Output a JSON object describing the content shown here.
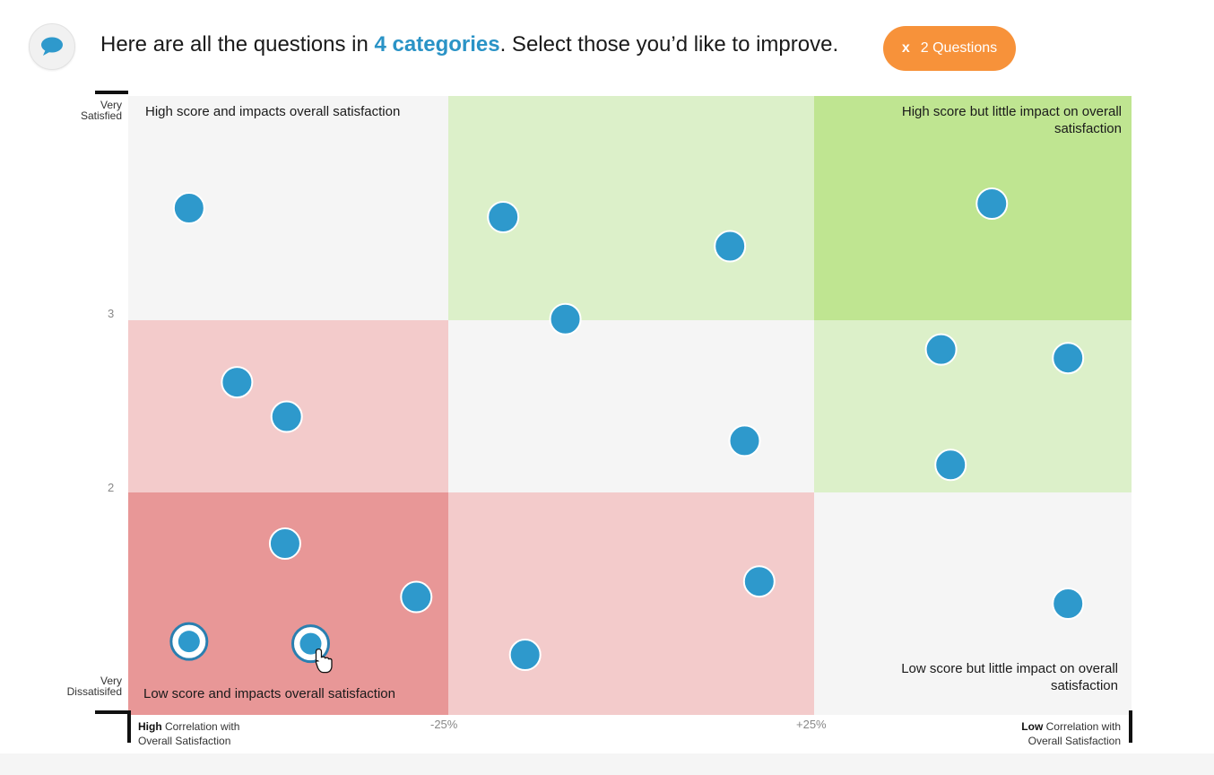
{
  "header": {
    "text_before": "Here are all the questions in ",
    "accent": "4 categories",
    "text_after": ". Select those you’d like to improve."
  },
  "selection_button": {
    "close": "x",
    "label": "2 Questions"
  },
  "chart_data": {
    "type": "scatter",
    "y_axis": {
      "top_label": "Very Satisfied",
      "bottom_label": "Very Dissatisifed",
      "ticks": [
        "3",
        "2"
      ]
    },
    "x_axis": {
      "ticks": [
        "-25%",
        "+25%"
      ],
      "left_note": {
        "bold": "High",
        "rest": " Correlation with",
        "line2": "Overall  Satisfaction"
      },
      "right_note": {
        "bold": "Low",
        "rest": " Correlation with",
        "line2": "Overall Satisfaction"
      }
    },
    "quadrant_labels": {
      "top_left": "High score and impacts overall satisfaction",
      "top_right": "High score but little impact on overall satisfaction",
      "bottom_left": "Low score and impacts overall satisfaction",
      "bottom_right": "Low score but little impact on overall satisfaction"
    },
    "zone_colors": {
      "neutral": "#f5f5f5",
      "light_green": "#dcf0c9",
      "green": "#bfe591",
      "light_red": "#f3cbcb",
      "red": "#e89797"
    },
    "zones": [
      [
        "neutral",
        "light_green",
        "green"
      ],
      [
        "light_red",
        "neutral",
        "light_green"
      ],
      [
        "red",
        "light_red",
        "neutral"
      ]
    ],
    "point_color": "#2e99cc",
    "points": [
      {
        "col": 0,
        "row": 0,
        "fx": 0.19,
        "fy": 0.5,
        "selected": false
      },
      {
        "col": 1,
        "row": 0,
        "fx": 0.15,
        "fy": 0.54,
        "selected": false
      },
      {
        "col": 1,
        "row": 0,
        "fx": 0.77,
        "fy": 0.67,
        "selected": false
      },
      {
        "col": 1,
        "row": 0,
        "fx": 0.32,
        "fy": 0.995,
        "selected": false
      },
      {
        "col": 2,
        "row": 0,
        "fx": 0.56,
        "fy": 0.48,
        "selected": false
      },
      {
        "col": 0,
        "row": 1,
        "fx": 0.34,
        "fy": 0.36,
        "selected": false
      },
      {
        "col": 0,
        "row": 1,
        "fx": 0.495,
        "fy": 0.56,
        "selected": false
      },
      {
        "col": 1,
        "row": 1,
        "fx": 0.81,
        "fy": 0.7,
        "selected": false
      },
      {
        "col": 2,
        "row": 1,
        "fx": 0.4,
        "fy": 0.17,
        "selected": false
      },
      {
        "col": 2,
        "row": 1,
        "fx": 0.8,
        "fy": 0.22,
        "selected": false
      },
      {
        "col": 2,
        "row": 1,
        "fx": 0.43,
        "fy": 0.84,
        "selected": false
      },
      {
        "col": 0,
        "row": 2,
        "fx": 0.49,
        "fy": 0.23,
        "selected": false
      },
      {
        "col": 0,
        "row": 2,
        "fx": 0.9,
        "fy": 0.47,
        "selected": false
      },
      {
        "col": 0,
        "row": 2,
        "fx": 0.19,
        "fy": 0.67,
        "selected": true
      },
      {
        "col": 0,
        "row": 2,
        "fx": 0.57,
        "fy": 0.68,
        "selected": true
      },
      {
        "col": 1,
        "row": 2,
        "fx": 0.85,
        "fy": 0.4,
        "selected": false
      },
      {
        "col": 1,
        "row": 2,
        "fx": 0.21,
        "fy": 0.73,
        "selected": false
      },
      {
        "col": 2,
        "row": 2,
        "fx": 0.8,
        "fy": 0.5,
        "selected": false
      }
    ]
  }
}
